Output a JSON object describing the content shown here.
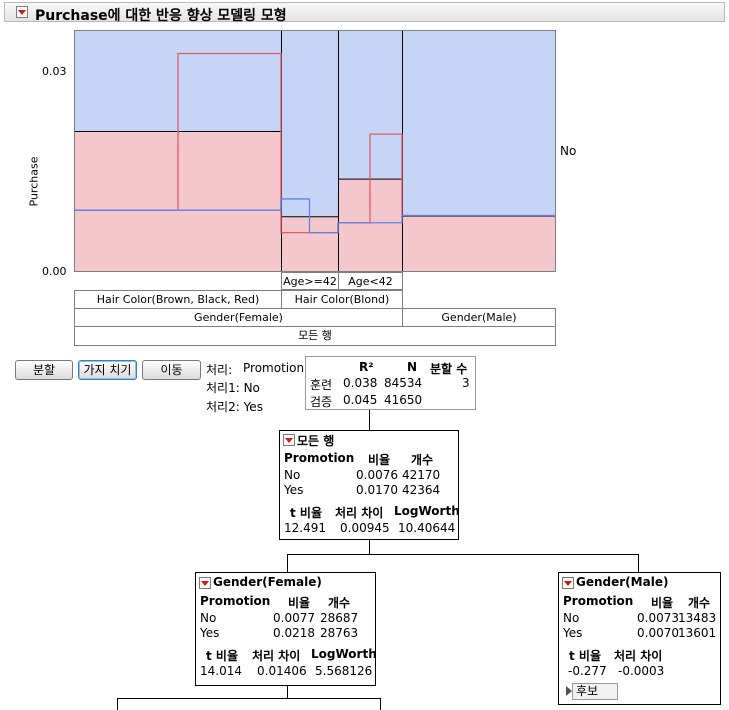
{
  "window": {
    "title": "Purchase에 대한 반응 향상 모델링 모형"
  },
  "plot": {
    "y_axis_label": "Purchase",
    "y_ticks": [
      "0.03",
      "0.00"
    ],
    "right_label": "No",
    "age_labels": [
      "Age>=42",
      "Age<42"
    ],
    "hair_labels": [
      "Hair Color(Brown, Black, Red)",
      "Hair Color(Blond)"
    ],
    "gender_labels": [
      "Gender(Female)",
      "Gender(Male)"
    ],
    "all_rows_label": "모든 행"
  },
  "chart_data": {
    "type": "bar",
    "ylabel": "Purchase",
    "categories": [
      "Hair Color(Brown, Black, Red)",
      "Age>=42",
      "Age<42",
      "Gender(Male)"
    ],
    "series": [
      {
        "name": "No",
        "values": [
          0.0211,
          0.0082,
          0.0139,
          0.0083
        ]
      }
    ],
    "treatment_lines": {
      "Yes": [
        0.0329,
        0.0109,
        0.0207,
        0.0084
      ],
      "No": [
        0.0092,
        0.0058,
        0.0073,
        0.0084
      ]
    },
    "ylim": [
      0,
      0.0363
    ]
  },
  "controls": {
    "split_label": "분할",
    "prune_label": "가지 치기",
    "move_label": "이동",
    "treatment_line": "처리:",
    "treatment_name": "Promotion",
    "treatment1": "처리1: No",
    "treatment2": "처리2: Yes"
  },
  "summary": {
    "headers": [
      "R²",
      "N",
      "분할 수"
    ],
    "rows": [
      {
        "label": "훈련",
        "r2": "0.038",
        "n": "84534",
        "splits": "3"
      },
      {
        "label": "검증",
        "r2": "0.045",
        "n": "41650",
        "splits": ""
      }
    ]
  },
  "nodes": {
    "root": {
      "title": "모든 행",
      "col_headers": [
        "Promotion",
        "비율",
        "개수"
      ],
      "rows": [
        {
          "label": "No",
          "rate": "0.0076",
          "count": "42170"
        },
        {
          "label": "Yes",
          "rate": "0.0170",
          "count": "42364"
        }
      ],
      "stat_headers": [
        "t 비율",
        "처리 차이",
        "LogWorth"
      ],
      "stats": [
        "12.491",
        "0.00945",
        "10.40644"
      ]
    },
    "female": {
      "title": "Gender(Female)",
      "col_headers": [
        "Promotion",
        "비율",
        "개수"
      ],
      "rows": [
        {
          "label": "No",
          "rate": "0.0077",
          "count": "28687"
        },
        {
          "label": "Yes",
          "rate": "0.0218",
          "count": "28763"
        }
      ],
      "stat_headers": [
        "t 비율",
        "처리 차이",
        "LogWorth"
      ],
      "stats": [
        "14.014",
        "0.01406",
        "5.568126"
      ]
    },
    "male": {
      "title": "Gender(Male)",
      "col_headers": [
        "Promotion",
        "비율",
        "개수"
      ],
      "rows": [
        {
          "label": "No",
          "rate": "0.0073",
          "count": "13483"
        },
        {
          "label": "Yes",
          "rate": "0.0070",
          "count": "13601"
        }
      ],
      "stat_headers": [
        "t 비율",
        "처리 차이"
      ],
      "stats": [
        "-0.277",
        "-0.0003"
      ],
      "candidates_label": "후보"
    }
  },
  "colors": {
    "no_fill": "#c6d4f5",
    "yes_fill": "#f3c7cc",
    "yes_line": "#e45a68",
    "no_line": "#5b82e8"
  }
}
